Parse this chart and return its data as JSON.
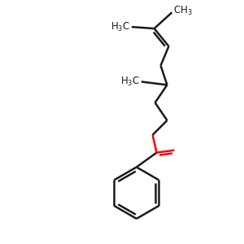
{
  "bg_color": "#ffffff",
  "bond_color": "#1a1a1a",
  "oxygen_color": "#ff0000",
  "line_width": 1.8,
  "font_size": 8.5,
  "figsize": [
    3.0,
    3.0
  ],
  "dpi": 100
}
